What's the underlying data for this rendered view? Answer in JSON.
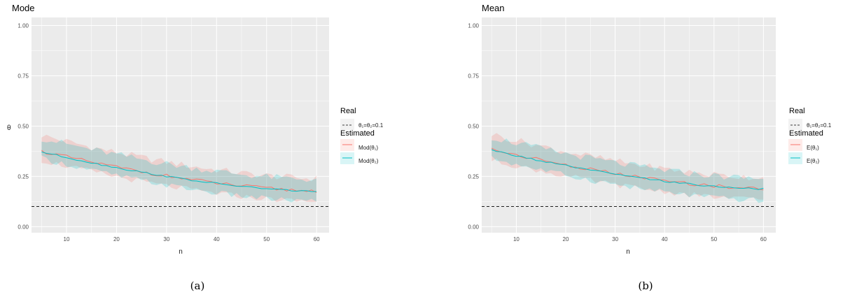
{
  "colors": {
    "panel_bg": "#EBEBEB",
    "grid": "#FFFFFF",
    "series1": "#F8766D",
    "series2": "#00BFC4",
    "real_line": "#000000"
  },
  "chart_data": [
    {
      "type": "line",
      "title": "Mode",
      "xlabel": "n",
      "ylabel": "θ",
      "xlim": [
        3,
        62.5
      ],
      "ylim": [
        -0.03,
        1.04
      ],
      "xticks": [
        10,
        20,
        30,
        40,
        50,
        60
      ],
      "yticks": [
        0.0,
        0.25,
        0.5,
        0.75,
        1.0
      ],
      "ytick_labels": [
        "0.00",
        "0.25",
        "0.50",
        "0.75",
        "1.00"
      ],
      "grid": true,
      "legend_position": "right",
      "legend_real_title": "Real",
      "legend_real_label": "θ₁=θ₂=0.1",
      "legend_est_title": "Estimated",
      "real_value": 0.1,
      "x_start": 5,
      "x_end": 60,
      "series": [
        {
          "name": "Mod(θ₁)",
          "start": 0.375,
          "end": 0.178,
          "lower_start": 0.33,
          "lower_end": 0.125,
          "upper_start": 0.455,
          "upper_end": 0.24
        },
        {
          "name": "Mod(θ₂)",
          "start": 0.372,
          "end": 0.176,
          "lower_start": 0.34,
          "lower_end": 0.125,
          "upper_start": 0.44,
          "upper_end": 0.235
        }
      ]
    },
    {
      "type": "line",
      "title": "Mean",
      "xlabel": "n",
      "ylabel": "",
      "xlim": [
        3,
        62.5
      ],
      "ylim": [
        -0.03,
        1.04
      ],
      "xticks": [
        10,
        20,
        30,
        40,
        50,
        60
      ],
      "yticks": [
        0.0,
        0.25,
        0.5,
        0.75,
        1.0
      ],
      "ytick_labels": [
        "0.00",
        "0.25",
        "0.50",
        "0.75",
        "1.00"
      ],
      "grid": true,
      "legend_position": "right",
      "legend_real_title": "Real",
      "legend_real_label": "θ₁=θ₂=0.1",
      "legend_est_title": "Estimated",
      "real_value": 0.1,
      "x_start": 5,
      "x_end": 60,
      "series": [
        {
          "name": "E(θ₁)",
          "start": 0.385,
          "end": 0.19,
          "lower_start": 0.33,
          "lower_end": 0.135,
          "upper_start": 0.46,
          "upper_end": 0.245
        },
        {
          "name": "E(θ₂)",
          "start": 0.38,
          "end": 0.188,
          "lower_start": 0.34,
          "lower_end": 0.13,
          "upper_start": 0.445,
          "upper_end": 0.24
        }
      ]
    }
  ],
  "captions": [
    "(a)",
    "(b)"
  ]
}
